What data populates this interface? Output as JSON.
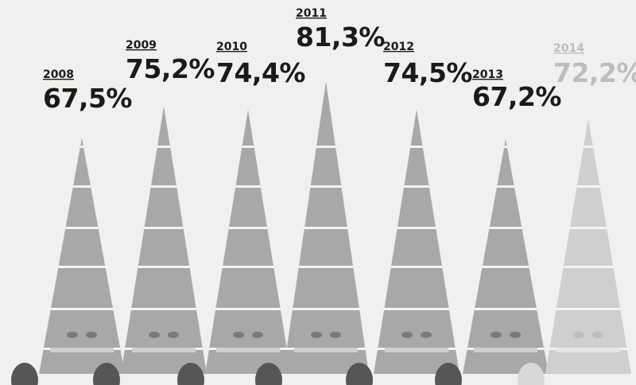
{
  "chart_data": {
    "type": "bar",
    "categories": [
      "2008",
      "2009",
      "2010",
      "2011",
      "2012",
      "2013",
      "2014"
    ],
    "values": [
      67.5,
      75.2,
      74.4,
      81.3,
      74.5,
      67.2,
      72.2
    ],
    "value_labels": [
      "67,5%",
      "75,2%",
      "74,4%",
      "81,3%",
      "74,5%",
      "67,2%",
      "72,2%"
    ],
    "highlight": [
      false,
      false,
      false,
      false,
      false,
      false,
      true
    ],
    "colors": {
      "background": "#f1f0ee",
      "cone": "#a8a8a8",
      "cone_faded": "#cfcfcf",
      "band": "#f4f4f4",
      "text": "#1a1a1a",
      "text_faded": "#bdbdbd",
      "shadow": "#565656"
    },
    "grid": true
  }
}
